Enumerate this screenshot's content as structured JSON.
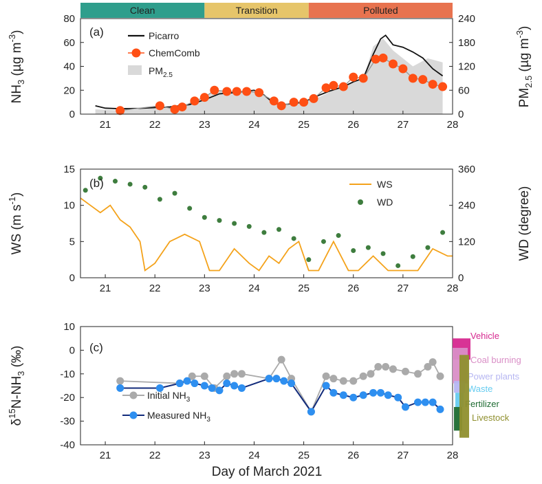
{
  "xlabel": "Day of March 2021",
  "phases": [
    {
      "label": "Clean",
      "from": 20.5,
      "to": 23.0,
      "color": "#2f9e8c"
    },
    {
      "label": "Transition",
      "from": 23.0,
      "to": 25.1,
      "color": "#e6c56a"
    },
    {
      "label": "Polluted",
      "from": 25.1,
      "to": 28.0,
      "color": "#e8734f"
    }
  ],
  "colors": {
    "picarro": "#111111",
    "chemcomb": "#ff4f14",
    "pm25": "#d9d9d9",
    "ws": "#f4a21a",
    "wd": "#3e7d3e",
    "initial": "#aaaaaa",
    "measured": "#2e8ff0",
    "measured_line": "#112a7a"
  },
  "chart_data": [
    {
      "type": "line",
      "panel_label": "(a)",
      "ylabel": "NH3 (µg m-3)",
      "ylabel_parts": {
        "main": "NH",
        "sub": "3",
        "rest": " (µg m",
        "sup": "-3",
        "close": ")"
      },
      "y2label": "PM2.5 (µg m-3)",
      "y2label_parts": {
        "main": "PM",
        "sub": "2.5",
        "rest": " (µg m",
        "sup": "-3",
        "close": ")"
      },
      "xlim": [
        20.5,
        28.0
      ],
      "xticks": [
        "21",
        "22",
        "23",
        "24",
        "25",
        "26",
        "27",
        "28"
      ],
      "ylim": [
        0,
        80
      ],
      "yticks": [
        "0",
        "20",
        "40",
        "60",
        "80"
      ],
      "y2lim": [
        0,
        240
      ],
      "y2ticks": [
        "0",
        "60",
        "120",
        "180",
        "240"
      ],
      "legend": [
        "Picarro",
        "ChemComb",
        "PM2.5"
      ],
      "legend_parts": {
        "pm_main": "PM",
        "pm_sub": "2.5"
      },
      "series": [
        {
          "name": "Picarro",
          "x": [
            20.8,
            21.0,
            21.3,
            21.7,
            22.0,
            22.3,
            22.7,
            23.0,
            23.3,
            23.6,
            23.8,
            24.0,
            24.2,
            24.4,
            24.6,
            24.8,
            25.0,
            25.2,
            25.5,
            25.8,
            26.0,
            26.2,
            26.4,
            26.55,
            26.65,
            26.8,
            27.0,
            27.2,
            27.4,
            27.6,
            27.8
          ],
          "values": [
            7,
            5,
            4.5,
            4.8,
            5.5,
            6,
            8,
            12,
            17,
            18,
            19,
            20,
            16,
            9,
            8,
            9,
            10,
            14,
            19,
            23,
            27,
            30,
            50,
            63,
            66,
            58,
            56,
            52,
            47,
            38,
            32
          ]
        },
        {
          "name": "ChemComb",
          "x": [
            21.3,
            22.1,
            22.4,
            22.55,
            22.8,
            23.0,
            23.2,
            23.45,
            23.65,
            23.85,
            24.1,
            24.4,
            24.55,
            24.8,
            25.0,
            25.2,
            25.45,
            25.6,
            25.8,
            26.0,
            26.2,
            26.45,
            26.6,
            26.8,
            27.0,
            27.2,
            27.4,
            27.6,
            27.8
          ],
          "values": [
            3,
            7,
            4,
            6,
            11,
            14,
            20,
            19,
            19,
            19,
            18,
            11,
            7,
            10,
            10,
            13,
            22,
            24,
            23,
            31,
            30,
            46,
            47,
            42,
            38,
            30,
            29,
            25,
            23
          ]
        },
        {
          "name": "PM2.5",
          "x": [
            20.8,
            21.2,
            21.6,
            22.0,
            22.4,
            22.8,
            23.0,
            23.3,
            23.6,
            24.0,
            24.3,
            24.6,
            25.0,
            25.3,
            25.6,
            25.9,
            26.2,
            26.4,
            26.6,
            26.8,
            27.0,
            27.2,
            27.5,
            27.8
          ],
          "values": [
            12,
            10,
            11,
            15,
            18,
            30,
            45,
            60,
            58,
            56,
            40,
            24,
            30,
            42,
            60,
            75,
            88,
            170,
            190,
            160,
            140,
            120,
            140,
            130
          ]
        }
      ]
    },
    {
      "type": "line",
      "panel_label": "(b)",
      "ylabel": "WS (m s-1)",
      "ylabel_parts": {
        "main": "WS (m s",
        "sup": "-1",
        "close": ")"
      },
      "y2label": "WD (degree)",
      "xlim": [
        20.5,
        28.0
      ],
      "xticks": [
        "21",
        "22",
        "23",
        "24",
        "25",
        "26",
        "27",
        "28"
      ],
      "ylim": [
        0,
        15
      ],
      "yticks": [
        "0",
        "5",
        "10",
        "15"
      ],
      "y2lim": [
        0,
        360
      ],
      "y2ticks": [
        "0",
        "120",
        "240",
        "360"
      ],
      "legend": [
        "WS",
        "WD"
      ],
      "series": [
        {
          "name": "WS",
          "x": [
            20.5,
            20.7,
            20.9,
            21.1,
            21.3,
            21.5,
            21.7,
            21.8,
            22.0,
            22.3,
            22.6,
            22.9,
            23.1,
            23.3,
            23.6,
            23.9,
            24.1,
            24.3,
            24.5,
            24.7,
            24.9,
            25.1,
            25.3,
            25.6,
            25.9,
            26.1,
            26.4,
            26.7,
            27.0,
            27.3,
            27.6,
            27.9,
            28.0
          ],
          "values": [
            11,
            10,
            9,
            10,
            8,
            7,
            5,
            1,
            2,
            5,
            6,
            5,
            1,
            1,
            4,
            2,
            1,
            3,
            2,
            4,
            5,
            1,
            1,
            5,
            1,
            1,
            3,
            1,
            1,
            1,
            4,
            3,
            3
          ]
        },
        {
          "name": "WD",
          "x": [
            20.6,
            20.9,
            21.2,
            21.5,
            21.8,
            22.1,
            22.4,
            22.7,
            23.0,
            23.3,
            23.6,
            23.9,
            24.2,
            24.5,
            24.8,
            25.1,
            25.4,
            25.7,
            26.0,
            26.3,
            26.6,
            26.9,
            27.2,
            27.5,
            27.8
          ],
          "values": [
            290,
            330,
            320,
            310,
            300,
            260,
            280,
            230,
            200,
            190,
            180,
            170,
            150,
            160,
            130,
            60,
            120,
            140,
            90,
            100,
            80,
            40,
            70,
            100,
            150
          ]
        }
      ]
    },
    {
      "type": "line",
      "panel_label": "(c)",
      "ylabel": "δ15N-NH3 (‰)",
      "ylabel_parts": {
        "delta": "δ",
        "sup": "15",
        "main": "N-NH",
        "sub": "3",
        "rest": " (‰)"
      },
      "xlim": [
        20.5,
        28.0
      ],
      "xticks": [
        "21",
        "22",
        "23",
        "24",
        "25",
        "26",
        "27",
        "28"
      ],
      "ylim": [
        -40,
        10
      ],
      "yticks": [
        "10",
        "0",
        "-10",
        "-20",
        "-30",
        "-40"
      ],
      "legend": [
        "Initial NH3",
        "Measured NH3"
      ],
      "legend_parts": {
        "initial_main": "Initial NH",
        "measured_main": "Measured NH",
        "sub": "3"
      },
      "series": [
        {
          "name": "Initial NH3",
          "x": [
            21.3,
            22.5,
            22.75,
            23.0,
            23.2,
            23.45,
            23.6,
            23.75,
            24.3,
            24.55,
            24.75,
            25.15,
            25.45,
            25.6,
            25.8,
            26.0,
            26.2,
            26.35,
            26.5,
            26.65,
            26.8,
            27.05,
            27.3,
            27.5,
            27.6,
            27.75
          ],
          "values": [
            -13,
            -14,
            -11,
            -11,
            -16,
            -11,
            -10,
            -10,
            -12,
            -4,
            -12,
            -26,
            -11,
            -12,
            -13,
            -13,
            -11,
            -10,
            -7,
            -7,
            -8,
            -9,
            -10,
            -7,
            -5,
            -11
          ]
        },
        {
          "name": "Measured NH3",
          "x": [
            21.3,
            22.1,
            22.5,
            22.65,
            22.8,
            23.0,
            23.15,
            23.3,
            23.45,
            23.6,
            23.75,
            24.3,
            24.45,
            24.6,
            24.75,
            25.15,
            25.45,
            25.6,
            25.8,
            26.0,
            26.2,
            26.4,
            26.55,
            26.7,
            26.9,
            27.05,
            27.3,
            27.45,
            27.6,
            27.75
          ],
          "values": [
            -16,
            -16,
            -14,
            -13,
            -14,
            -15,
            -16,
            -17,
            -14,
            -15,
            -16,
            -12,
            -12,
            -13,
            -14,
            -26,
            -15,
            -18,
            -19,
            -20,
            -19,
            -18,
            -18,
            -19,
            -20,
            -24,
            -22,
            -22,
            -22,
            -25
          ]
        }
      ],
      "sources": [
        {
          "label": "Vehicle",
          "min": -4,
          "max": 5,
          "color": "#d6288f"
        },
        {
          "label": "Coal burning",
          "min": -14,
          "max": 1,
          "color": "#d98ec6"
        },
        {
          "label": "Power plants",
          "min": -18,
          "max": -13,
          "color": "#b6b6f2"
        },
        {
          "label": "Waste",
          "min": -24,
          "max": -18,
          "color": "#66ccf0"
        },
        {
          "label": "Fertilizer",
          "min": -34,
          "max": -24,
          "color": "#1e6b32"
        },
        {
          "label": "Livestock",
          "min": -37,
          "max": -2,
          "color": "#8f8f2e"
        }
      ]
    }
  ]
}
